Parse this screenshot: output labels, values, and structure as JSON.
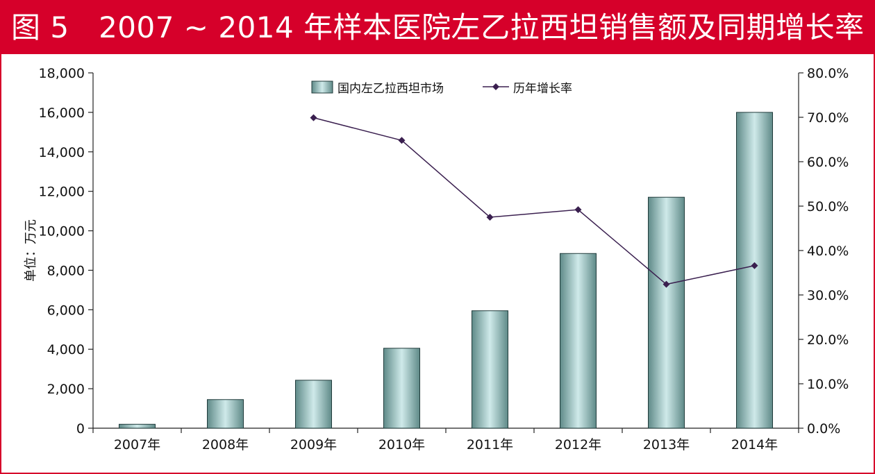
{
  "title": "图 5　2007 ~ 2014 年样本医院左乙拉西坦销售额及同期增长率",
  "colors": {
    "title_bg": "#d6002a",
    "bar_edge": "#1f3a3a",
    "bar_light": "#cfeaea",
    "bar_dark": "#5f8a88",
    "line": "#3a1f4f"
  },
  "chart_data": {
    "type": "bar+line",
    "categories": [
      "2007年",
      "2008年",
      "2009年",
      "2010年",
      "2011年",
      "2012年",
      "2013年",
      "2014年"
    ],
    "ylabel": "单位：万元",
    "ylim": [
      0,
      18000
    ],
    "y_ticks": [
      "0",
      "2,000",
      "4,000",
      "6,000",
      "8,000",
      "10,000",
      "12,000",
      "14,000",
      "16,000",
      "18,000"
    ],
    "y2lim": [
      0,
      80
    ],
    "y2_ticks": [
      "0.0%",
      "10.0%",
      "20.0%",
      "30.0%",
      "40.0%",
      "50.0%",
      "60.0%",
      "70.0%",
      "80.0%"
    ],
    "legend_position": "top",
    "series": [
      {
        "name": "国内左乙拉西坦市场",
        "type": "bar",
        "axis": "left",
        "values": [
          200,
          1450,
          2430,
          4050,
          5950,
          8850,
          11700,
          16000
        ]
      },
      {
        "name": "历年增长率",
        "type": "line",
        "axis": "right",
        "unit": "%",
        "values": [
          null,
          null,
          69.9,
          64.8,
          47.5,
          49.2,
          32.4,
          36.6
        ]
      }
    ]
  }
}
